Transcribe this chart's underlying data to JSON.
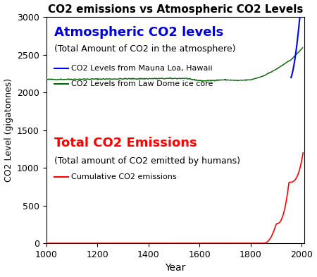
{
  "title": "CO2 emissions vs Atmospheric CO2 Levels",
  "xlabel": "Year",
  "ylabel": "CO2 Level (gigatonnes)",
  "xlim": [
    1000,
    2010
  ],
  "ylim": [
    0,
    3000
  ],
  "yticks": [
    0,
    500,
    1000,
    1500,
    2000,
    2500,
    3000
  ],
  "xticks": [
    1000,
    1200,
    1400,
    1600,
    1800,
    2000
  ],
  "bg_color": "#ffffff",
  "annotation_atm_title": "Atmospheric CO2 levels",
  "annotation_atm_sub": "(Total Amount of CO2 in the atmosphere)",
  "annotation_em_title": "Total CO2 Emissions",
  "annotation_em_sub": "(Total amount of CO2 emitted by humans)",
  "legend_blue": "CO2 Levels from Mauna Loa, Hawaii",
  "legend_green": "CO2 Levels from Law Dome ice core",
  "legend_red": "Cumulative CO2 emissions",
  "color_blue": "#0000ff",
  "color_green": "#006600",
  "color_red": "#ff0000",
  "color_atm_title": "#0000dd",
  "color_em_title": "#ff0000",
  "atm_title_fontsize": 13,
  "atm_sub_fontsize": 9,
  "em_title_fontsize": 13,
  "em_sub_fontsize": 9,
  "legend_fontsize": 8,
  "title_fontsize": 11,
  "axis_fontsize": 9
}
